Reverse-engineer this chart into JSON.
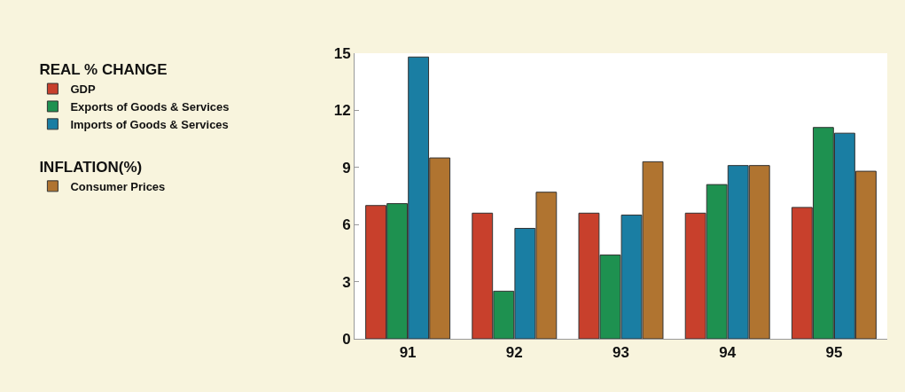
{
  "chart_data": {
    "type": "bar",
    "legend_title": "REAL % CHANGE",
    "annotations": [
      "INFLATION(%)"
    ],
    "categories": [
      "91",
      "92",
      "93",
      "94",
      "95"
    ],
    "series": [
      {
        "name": "GDP",
        "color": "#c8402c",
        "values": [
          7.0,
          6.6,
          6.6,
          6.6,
          6.9
        ]
      },
      {
        "name": "Exports of Goods & Services",
        "color": "#1e9150",
        "values": [
          7.1,
          2.5,
          4.4,
          8.1,
          11.1
        ]
      },
      {
        "name": "Imports of Goods & Services",
        "color": "#1a7ea3",
        "values": [
          14.8,
          5.8,
          6.5,
          9.1,
          10.8
        ]
      },
      {
        "name": "Consumer Prices",
        "color": "#b07430",
        "values": [
          9.5,
          7.7,
          9.3,
          9.1,
          8.8
        ]
      }
    ],
    "ylim": [
      0,
      15
    ],
    "yticks": [
      0,
      3,
      6,
      9,
      12,
      15
    ],
    "legend": "left"
  }
}
